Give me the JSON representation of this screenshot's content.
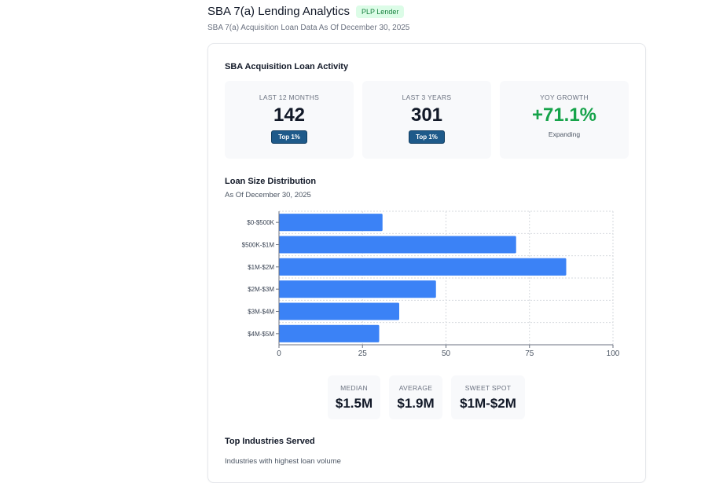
{
  "header": {
    "title": "SBA 7(a) Lending Analytics",
    "badge": "PLP Lender",
    "subtitle": "SBA 7(a) Acquisition Loan Data As Of December 30, 2025"
  },
  "activity": {
    "title": "SBA Acquisition Loan Activity",
    "stats": [
      {
        "label": "LAST 12 MONTHS",
        "value": "142",
        "badge": "Top 1%"
      },
      {
        "label": "LAST 3 YEARS",
        "value": "301",
        "badge": "Top 1%"
      },
      {
        "label": "YOY GROWTH",
        "value": "+71.1%",
        "note": "Expanding"
      }
    ]
  },
  "distribution": {
    "title": "Loan Size Distribution",
    "subtitle": "As Of December 30, 2025"
  },
  "chart_data": {
    "type": "bar",
    "orientation": "horizontal",
    "categories": [
      "$0-$500K",
      "$500K-$1M",
      "$1M-$2M",
      "$2M-$3M",
      "$3M-$4M",
      "$4M-$5M"
    ],
    "values": [
      31,
      71,
      86,
      47,
      36,
      30
    ],
    "xlim": [
      0,
      100
    ],
    "xticks": [
      "0",
      "25",
      "50",
      "75",
      "100"
    ],
    "grid": true,
    "bar_color": "#3b82f6"
  },
  "metrics": [
    {
      "label": "MEDIAN",
      "value": "$1.5M"
    },
    {
      "label": "AVERAGE",
      "value": "$1.9M"
    },
    {
      "label": "SWEET SPOT",
      "value": "$1M-$2M"
    }
  ],
  "industries": {
    "title": "Top Industries Served",
    "subtitle": "Industries with highest loan volume"
  }
}
